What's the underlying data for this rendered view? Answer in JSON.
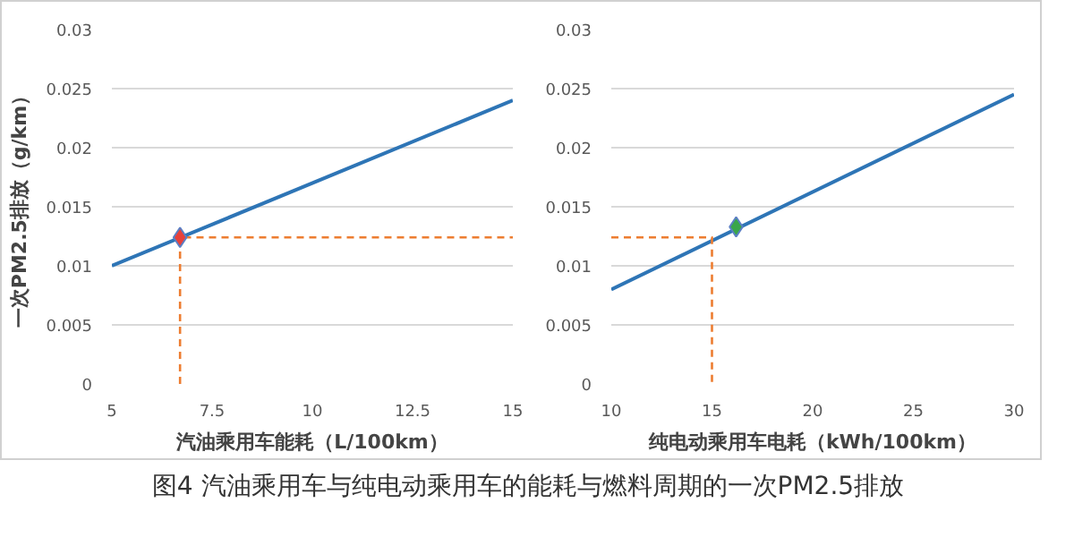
{
  "chart_data": [
    {
      "type": "line",
      "xlabel": "汽油乘用车能耗（L/100km）",
      "ylabel": "一次PM2.5排放（g/km）",
      "xlim": [
        5,
        15
      ],
      "xticks": [
        5,
        7.5,
        10,
        12.5,
        15
      ],
      "ylim": [
        0,
        0.03
      ],
      "yticks": [
        0,
        0.005,
        0.01,
        0.015,
        0.02,
        0.025,
        0.03
      ],
      "grid": "y",
      "annotations": [
        "图4 汽油乘用车与纯电动乘用车的能耗与燃料周期的一次PM2.5排放"
      ],
      "series": [
        {
          "color": "#2e75b6",
          "x": [
            5,
            15
          ],
          "values": [
            0.01,
            0.024
          ]
        },
        {
          "color": "#ed7d31",
          "line_style": "dashed",
          "x": [
            6.7,
            6.7,
            15
          ],
          "values": [
            0,
            0.0124,
            0.0124
          ]
        },
        {
          "type": "scatter",
          "color": "#e8413a",
          "marker": "diamond",
          "x": [
            6.7
          ],
          "values": [
            0.0124
          ]
        }
      ]
    },
    {
      "type": "line",
      "xlabel": "纯电动乘用车电耗（kWh/100km）",
      "xlim": [
        10,
        30
      ],
      "xticks": [
        10,
        15,
        20,
        25,
        30
      ],
      "ylim": [
        0,
        0.03
      ],
      "yticks": [
        0,
        0.005,
        0.01,
        0.015,
        0.02,
        0.025,
        0.03
      ],
      "grid": "y",
      "series": [
        {
          "color": "#2e75b6",
          "x": [
            10,
            30
          ],
          "values": [
            0.008,
            0.0245
          ]
        },
        {
          "color": "#ed7d31",
          "line_style": "dashed",
          "x": [
            10,
            15,
            15
          ],
          "values": [
            0.0124,
            0.0124,
            0
          ]
        },
        {
          "type": "scatter",
          "color": "#3aa64a",
          "marker": "diamond",
          "x": [
            16.2
          ],
          "values": [
            0.0133
          ]
        }
      ]
    }
  ]
}
